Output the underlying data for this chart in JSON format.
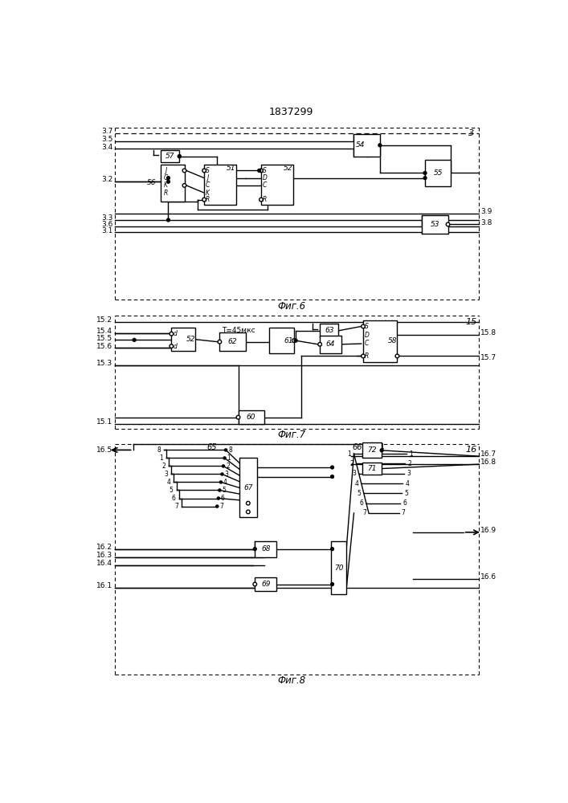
{
  "title": "1837299",
  "fig6_label": "Фиг.6",
  "fig7_label": "Фиг.7",
  "fig8_label": "Фиг.8",
  "bg_color": "#ffffff",
  "line_color": "#000000"
}
